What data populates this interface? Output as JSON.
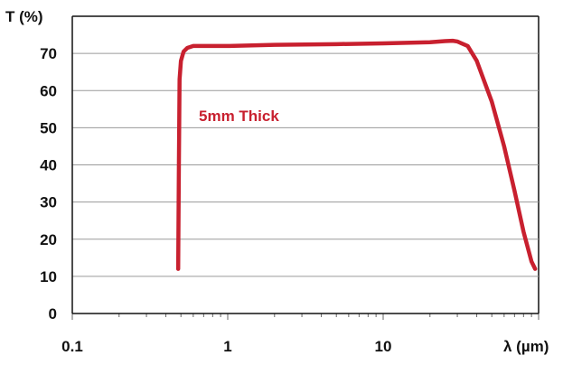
{
  "chart_data": {
    "type": "line",
    "title": "",
    "ylabel": "T (%)",
    "xlabel": "λ (µm)",
    "x_scale": "log",
    "xlim": [
      0.1,
      100
    ],
    "ylim": [
      0,
      80
    ],
    "x_ticks": [
      {
        "value": 0.1,
        "label": "0.1"
      },
      {
        "value": 1,
        "label": "1"
      },
      {
        "value": 10,
        "label": "10"
      }
    ],
    "y_ticks": [
      {
        "value": 0,
        "label": "0"
      },
      {
        "value": 10,
        "label": "10"
      },
      {
        "value": 20,
        "label": "20"
      },
      {
        "value": 30,
        "label": "30"
      },
      {
        "value": 40,
        "label": "40"
      },
      {
        "value": 50,
        "label": "50"
      },
      {
        "value": 60,
        "label": "60"
      },
      {
        "value": 70,
        "label": "70"
      }
    ],
    "grid": "horizontal",
    "series": [
      {
        "name": "5mm Thick",
        "color": "#c8202f",
        "x": [
          0.48,
          0.485,
          0.49,
          0.5,
          0.52,
          0.55,
          0.6,
          0.7,
          1,
          2,
          5,
          10,
          20,
          25,
          28,
          30,
          35,
          40,
          50,
          60,
          70,
          80,
          90,
          95
        ],
        "y": [
          12,
          40,
          63,
          68,
          70.5,
          71.5,
          72,
          72,
          72,
          72.3,
          72.5,
          72.7,
          73,
          73.3,
          73.4,
          73.2,
          72,
          68,
          57,
          45,
          33,
          22,
          14,
          12
        ]
      }
    ]
  }
}
